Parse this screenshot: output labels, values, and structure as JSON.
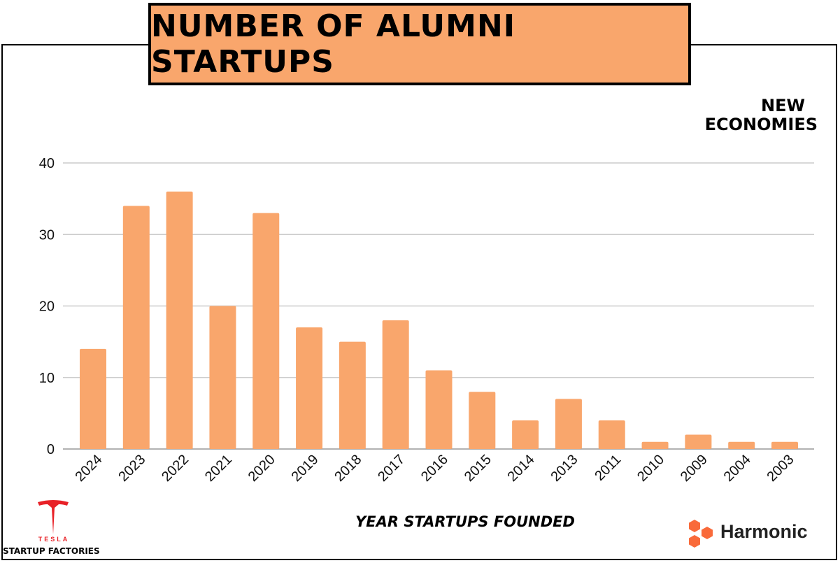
{
  "title": "NUMBER OF ALUMNI STARTUPS",
  "brand": {
    "line1": "NEW",
    "line2": "ECONOMIES"
  },
  "tesla": {
    "wordmark": "TESLA",
    "subtitle": "STARTUP FACTORIES"
  },
  "harmonic": {
    "name": "Harmonic"
  },
  "colors": {
    "bar": "#f9a66c",
    "title_bg": "#f9a66c",
    "tesla_red": "#e82127",
    "harmonic_orange": "#f96a3a",
    "grid": "#cccccc"
  },
  "chart_data": {
    "type": "bar",
    "title": "NUMBER OF ALUMNI STARTUPS",
    "xlabel": "YEAR STARTUPS FOUNDED",
    "ylabel": "",
    "categories": [
      "2024",
      "2023",
      "2022",
      "2021",
      "2020",
      "2019",
      "2018",
      "2017",
      "2016",
      "2015",
      "2014",
      "2013",
      "2011",
      "2010",
      "2009",
      "2004",
      "2003"
    ],
    "values": [
      14,
      34,
      36,
      20,
      33,
      17,
      15,
      18,
      11,
      8,
      4,
      7,
      4,
      1,
      2,
      1,
      1
    ],
    "ylim": [
      0,
      40
    ],
    "yticks": [
      0,
      10,
      20,
      30,
      40
    ],
    "grid": true
  }
}
